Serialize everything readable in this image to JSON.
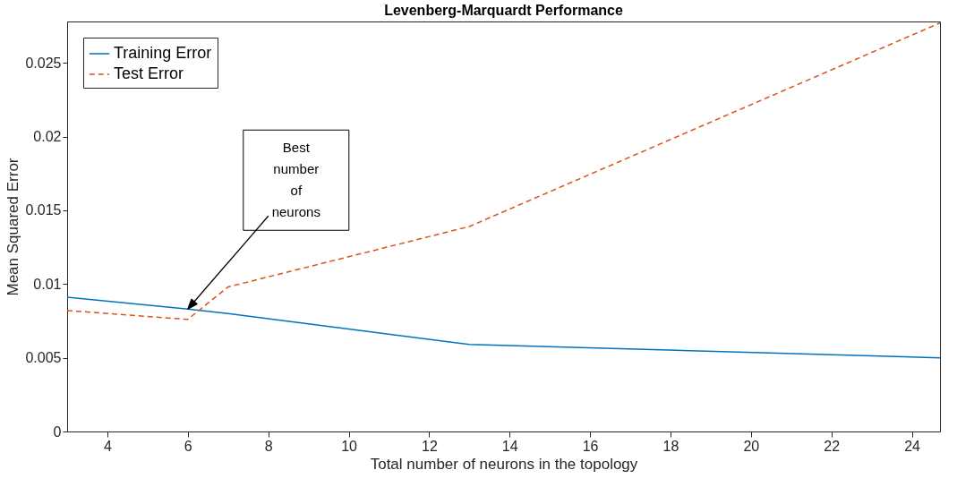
{
  "chart_data": {
    "type": "line",
    "title": "Levenberg-Marquardt Performance",
    "xlabel": "Total number of neurons in the topology",
    "ylabel": "Mean Squared Error",
    "xlim": [
      3,
      24.7
    ],
    "ylim": [
      0,
      0.0278
    ],
    "xticks": [
      4,
      6,
      8,
      10,
      12,
      14,
      16,
      18,
      20,
      22,
      24
    ],
    "yticks": [
      0,
      0.005,
      0.01,
      0.015,
      0.02,
      0.025
    ],
    "grid": false,
    "legend": "top left",
    "series": [
      {
        "name": "Training Error",
        "color": "#0072bd",
        "line_style": "solid",
        "x": [
          3,
          6,
          7,
          13,
          24.7
        ],
        "values": [
          0.0091,
          0.0083,
          0.008,
          0.0059,
          0.005
        ]
      },
      {
        "name": "Test Error",
        "color": "#d95319",
        "line_style": "dashed",
        "x": [
          3,
          6,
          7,
          13,
          24.7
        ],
        "values": [
          0.0082,
          0.0076,
          0.0098,
          0.0139,
          0.0277
        ]
      }
    ],
    "annotations": [
      {
        "text": "Best number of neurons",
        "x": 6,
        "y": 0.0083
      }
    ]
  }
}
